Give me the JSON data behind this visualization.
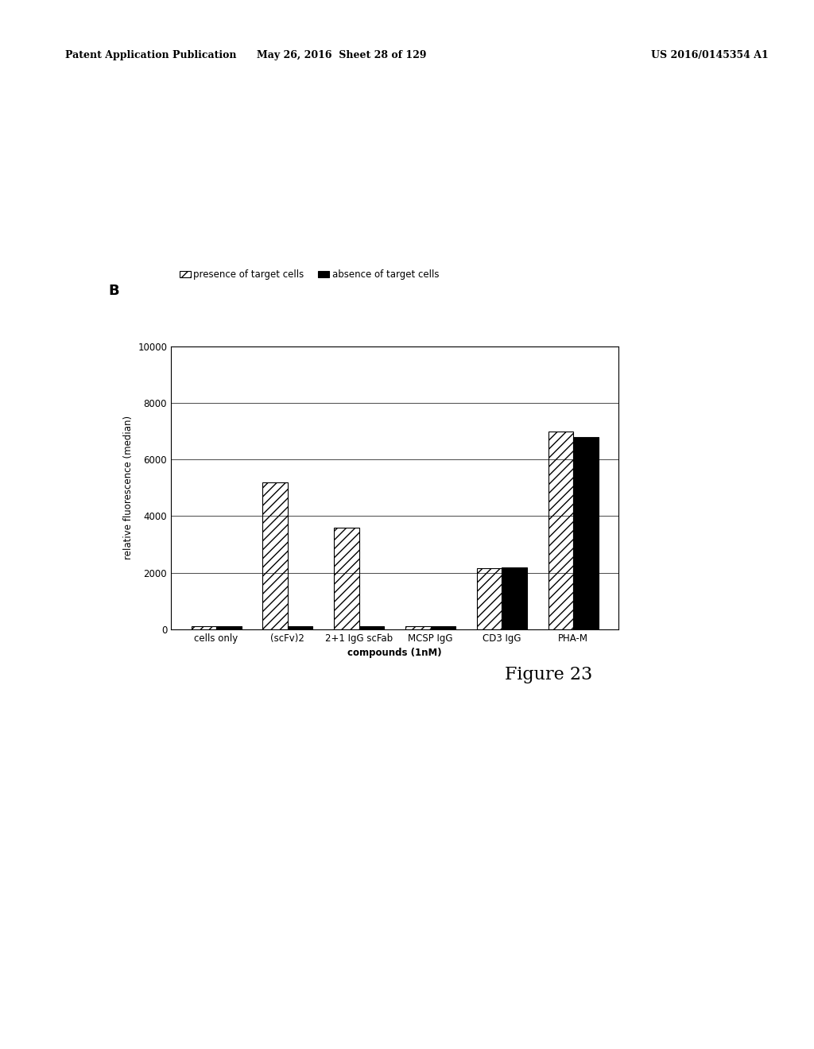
{
  "categories": [
    "cells only",
    "(scFv)2",
    "2+1 IgG scFab",
    "MCSP IgG",
    "CD3 IgG",
    "PHA-M"
  ],
  "presence": [
    100,
    5200,
    3600,
    100,
    2150,
    7000
  ],
  "absence": [
    100,
    100,
    100,
    100,
    2200,
    6800
  ],
  "ylim": [
    0,
    10000
  ],
  "yticks": [
    0,
    2000,
    4000,
    6000,
    8000,
    10000
  ],
  "ylabel": "relative fluorescence (median)",
  "xlabel": "compounds (1nM)",
  "legend_presence": "presence of target cells",
  "legend_absence": "absence of target cells",
  "panel_label": "B",
  "figure_label": "Figure 23",
  "header_left": "Patent Application Publication",
  "header_mid": "May 26, 2016  Sheet 28 of 129",
  "header_right": "US 2016/0145354 A1",
  "hatch_presence": "///",
  "color_presence": "white",
  "color_absence": "black",
  "bar_width": 0.35,
  "bar_edgecolor": "black"
}
